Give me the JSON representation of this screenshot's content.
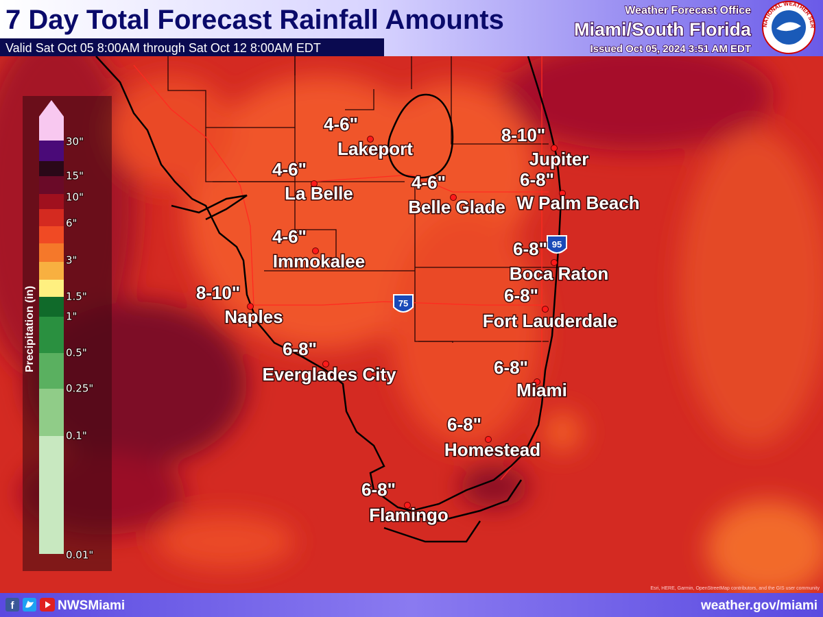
{
  "header": {
    "title": "7 Day Total Forecast Rainfall Amounts",
    "valid": "Valid Sat Oct 05 8:00AM through Sat Oct 12 8:00AM EDT",
    "office_line1": "Weather Forecast Office",
    "office_line2": "Miami/South Florida",
    "issued": "Issued Oct 05, 2024 3:51 AM EDT",
    "logo_text": "NATIONAL WEATHER SERVICE"
  },
  "legend": {
    "title": "Precipitation (in)",
    "labels": [
      "30\"",
      "15\"",
      "10\"",
      "6\"",
      "3\"",
      "1.5\"",
      "1\"",
      "0.5\"",
      "0.25\"",
      "0.1\"",
      "0.01\""
    ]
  },
  "cities": [
    {
      "name": "Lakeport",
      "amount": "4-6\""
    },
    {
      "name": "La Belle",
      "amount": "4-6\""
    },
    {
      "name": "Belle Glade",
      "amount": "4-6\""
    },
    {
      "name": "Jupiter",
      "amount": "8-10\""
    },
    {
      "name": "W Palm Beach",
      "amount": "6-8\""
    },
    {
      "name": "Immokalee",
      "amount": "4-6\""
    },
    {
      "name": "Boca Raton",
      "amount": "6-8\""
    },
    {
      "name": "Naples",
      "amount": "8-10\""
    },
    {
      "name": "Fort Lauderdale",
      "amount": "6-8\""
    },
    {
      "name": "Everglades City",
      "amount": "6-8\""
    },
    {
      "name": "Miami",
      "amount": "6-8\""
    },
    {
      "name": "Homestead",
      "amount": "6-8\""
    },
    {
      "name": "Flamingo",
      "amount": "6-8\""
    }
  ],
  "highways": [
    "75",
    "95"
  ],
  "attribution": "Esri, HERE, Garmin, OpenStreetMap contributors, and the GIS user community",
  "footer": {
    "social": "NWSMiami",
    "url": "weather.gov/miami"
  }
}
